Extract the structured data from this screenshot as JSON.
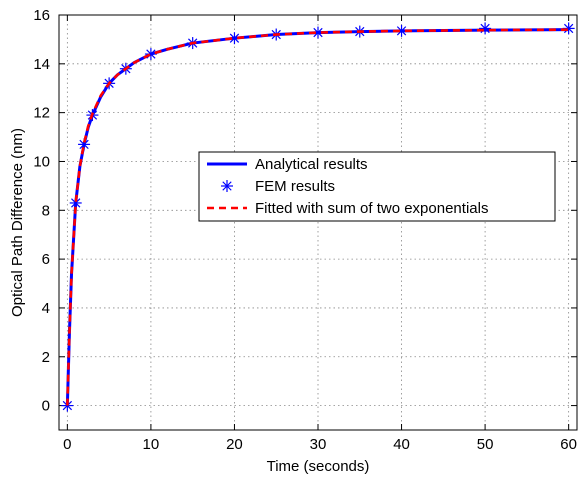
{
  "chart_data": {
    "type": "line",
    "title": "",
    "xlabel": "Time (seconds)",
    "ylabel": "Optical Path Difference (nm)",
    "xlim": [
      -1,
      61
    ],
    "ylim": [
      -1,
      16
    ],
    "x_ticks": [
      0,
      10,
      20,
      30,
      40,
      50,
      60
    ],
    "y_ticks": [
      0,
      2,
      4,
      6,
      8,
      10,
      12,
      14,
      16
    ],
    "grid": true,
    "legend_position": "center-right",
    "series": [
      {
        "name": "Analytical results",
        "style": "solid-line",
        "color": "#0000ff",
        "x": [
          0,
          0.25,
          0.5,
          1,
          1.5,
          2,
          2.5,
          3,
          4,
          5,
          6,
          7,
          8,
          10,
          12,
          15,
          20,
          25,
          30,
          35,
          40,
          50,
          60
        ],
        "y": [
          0,
          3.0,
          5.4,
          8.3,
          9.8,
          10.7,
          11.4,
          11.9,
          12.65,
          13.2,
          13.55,
          13.8,
          14.05,
          14.4,
          14.6,
          14.85,
          15.05,
          15.2,
          15.28,
          15.32,
          15.35,
          15.38,
          15.4
        ]
      },
      {
        "name": "FEM results",
        "style": "asterisk-markers",
        "color": "#0000ff",
        "x": [
          0,
          1,
          2,
          3,
          5,
          7,
          10,
          15,
          20,
          25,
          30,
          35,
          40,
          50,
          60
        ],
        "y": [
          0,
          8.3,
          10.7,
          11.9,
          13.2,
          13.8,
          14.4,
          14.85,
          15.05,
          15.2,
          15.28,
          15.32,
          15.35,
          15.45,
          15.45
        ]
      },
      {
        "name": "Fitted with sum of two exponentials",
        "style": "dashed-line",
        "color": "#ff0000",
        "x": [
          0,
          0.25,
          0.5,
          1,
          1.5,
          2,
          2.5,
          3,
          4,
          5,
          6,
          7,
          8,
          10,
          12,
          15,
          20,
          25,
          30,
          35,
          40,
          50,
          60
        ],
        "y": [
          0,
          3.0,
          5.4,
          8.3,
          9.8,
          10.75,
          11.45,
          11.95,
          12.7,
          13.2,
          13.55,
          13.8,
          14.05,
          14.4,
          14.6,
          14.85,
          15.05,
          15.2,
          15.28,
          15.32,
          15.35,
          15.38,
          15.4
        ]
      }
    ]
  }
}
